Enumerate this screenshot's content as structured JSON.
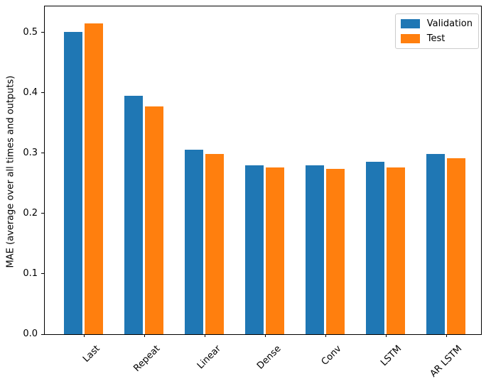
{
  "figure": {
    "background": "#ffffff",
    "text_color": "#000000",
    "spine_color": "#000000",
    "legend_border_color": "#cccccc"
  },
  "chart_data": {
    "type": "bar",
    "title": "",
    "xlabel": "",
    "ylabel": "MAE (average over all times and outputs)",
    "categories": [
      "Last",
      "Repeat",
      "Linear",
      "Dense",
      "Conv",
      "LSTM",
      "AR LSTM"
    ],
    "series": [
      {
        "name": "Validation",
        "color": "#1f77b4",
        "values": [
          0.501,
          0.395,
          0.306,
          0.28,
          0.28,
          0.286,
          0.298
        ]
      },
      {
        "name": "Test",
        "color": "#ff7f0e",
        "values": [
          0.515,
          0.377,
          0.299,
          0.276,
          0.274,
          0.276,
          0.291
        ]
      }
    ],
    "ylim": [
      0,
      0.543
    ],
    "yticks": [
      0.0,
      0.1,
      0.2,
      0.3,
      0.4,
      0.5
    ],
    "ytick_labels": [
      "0.0",
      "0.1",
      "0.2",
      "0.3",
      "0.4",
      "0.5"
    ],
    "xtick_rotation": 45,
    "grid": false,
    "legend_position": "upper right"
  }
}
